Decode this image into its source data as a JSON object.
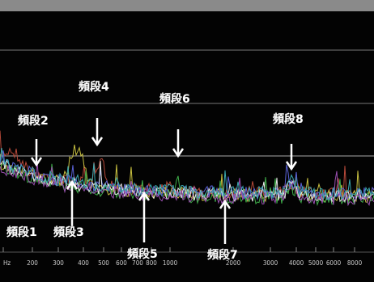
{
  "band_labels": [
    "頻段1",
    "頻段2",
    "頻段3",
    "頻段4",
    "頻段5",
    "頻段6",
    "頻段7",
    "頻段8"
  ],
  "x_axis_labels": [
    "Hz",
    "200",
    "300",
    "400",
    "500",
    "600",
    "700",
    "800",
    "1000",
    "2000",
    "3000",
    "4000",
    "5000",
    "6000",
    "8000"
  ]
}
